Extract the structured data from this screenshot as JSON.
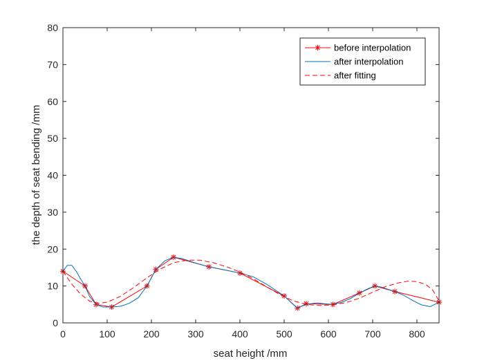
{
  "chart_data": {
    "type": "line",
    "title": "",
    "xlabel": "seat height  /mm",
    "ylabel": "the depth of seat bending  /mm",
    "xlim": [
      0,
      850
    ],
    "ylim": [
      0,
      80
    ],
    "xticks": [
      0,
      100,
      200,
      300,
      400,
      500,
      600,
      700,
      800
    ],
    "yticks": [
      0,
      10,
      20,
      30,
      40,
      50,
      60,
      70,
      80
    ],
    "grid": false,
    "legend_position": "top-right",
    "series": [
      {
        "name": "before interpolation",
        "color": "#ff0000",
        "style": "solid",
        "marker": "asterisk",
        "x": [
          0,
          50,
          75,
          110,
          190,
          210,
          250,
          330,
          400,
          500,
          530,
          550,
          610,
          670,
          705,
          750,
          850
        ],
        "y": [
          14,
          10,
          5,
          4.3,
          10,
          14.5,
          17.8,
          15.2,
          13.5,
          7.3,
          4,
          5.2,
          5,
          8.1,
          10,
          8.5,
          5.6
        ]
      },
      {
        "name": "after interpolation",
        "color": "#0072bd",
        "style": "solid",
        "marker": "none",
        "x": [
          0,
          10,
          20,
          30,
          40,
          50,
          60,
          75,
          90,
          110,
          130,
          150,
          170,
          190,
          200,
          210,
          230,
          250,
          270,
          300,
          330,
          360,
          400,
          430,
          460,
          480,
          500,
          515,
          530,
          545,
          560,
          575,
          590,
          610,
          630,
          650,
          670,
          690,
          705,
          720,
          735,
          750,
          770,
          790,
          810,
          830,
          850
        ],
        "y": [
          14,
          15.6,
          15.6,
          14,
          11.9,
          10,
          7.2,
          5,
          4.3,
          4.3,
          4.5,
          5.3,
          6.8,
          10,
          12.2,
          14.5,
          16.8,
          17.8,
          17.4,
          16.2,
          15.2,
          14.5,
          13.5,
          12.5,
          10.5,
          8.9,
          7.3,
          5.6,
          4,
          4.8,
          5.2,
          5.4,
          5.2,
          5,
          5.6,
          6.6,
          8.1,
          9.3,
          10,
          9.7,
          9.1,
          8.5,
          7.5,
          6.1,
          4.9,
          4.4,
          5.6
        ]
      },
      {
        "name": "after fitting",
        "color": "#ff0000",
        "style": "dashed",
        "marker": "none",
        "x": [
          0,
          20,
          40,
          60,
          80,
          100,
          130,
          160,
          190,
          220,
          250,
          280,
          310,
          340,
          370,
          400,
          430,
          460,
          490,
          520,
          550,
          580,
          610,
          640,
          670,
          700,
          730,
          760,
          780,
          800,
          820,
          835,
          850
        ],
        "y": [
          14,
          10.5,
          7.8,
          5.9,
          5.3,
          5.6,
          7.2,
          9.6,
          12.2,
          14.6,
          16.3,
          17,
          17,
          16.3,
          15.2,
          13.8,
          12,
          9.8,
          7.7,
          6,
          5,
          4.7,
          4.9,
          5.5,
          6.7,
          8.3,
          9.9,
          10.9,
          11.3,
          11.2,
          10.4,
          9,
          6
        ]
      }
    ]
  }
}
